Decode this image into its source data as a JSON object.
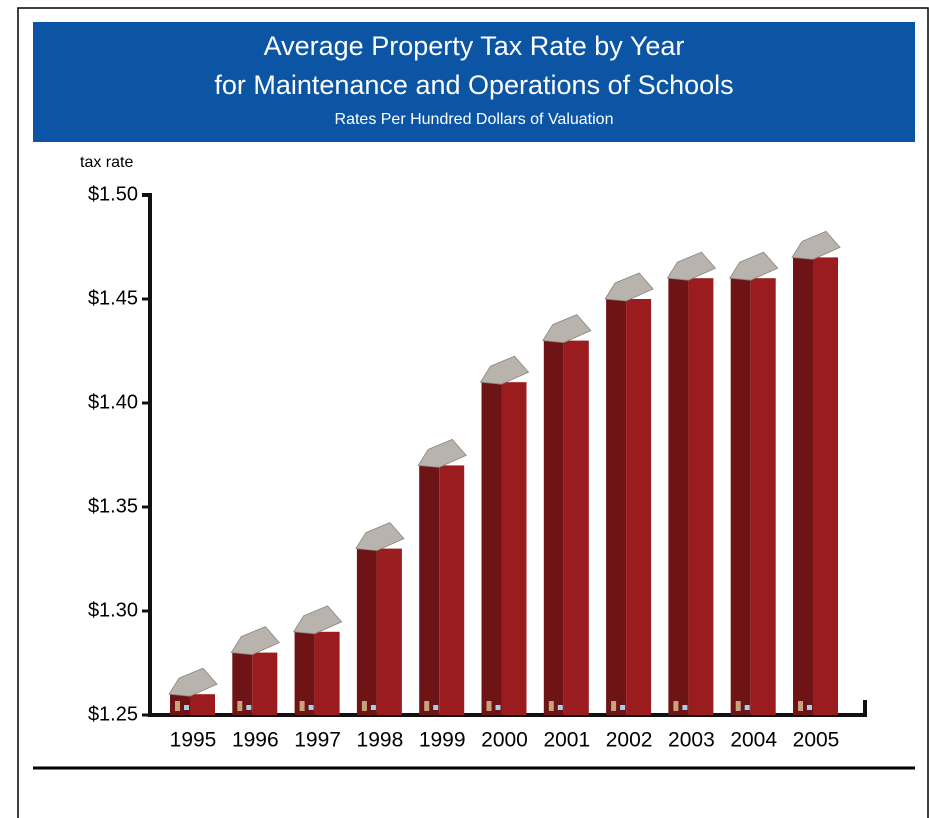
{
  "chart_data": {
    "type": "bar",
    "title": "Average Property Tax Rate by Year",
    "subtitle": "for Maintenance and Operations of Schools",
    "note": "Rates Per Hundred Dollars of Valuation",
    "y_label": "tax rate",
    "categories": [
      "1995",
      "1996",
      "1997",
      "1998",
      "1999",
      "2000",
      "2001",
      "2002",
      "2003",
      "2004",
      "2005"
    ],
    "values": [
      1.26,
      1.28,
      1.29,
      1.33,
      1.37,
      1.41,
      1.43,
      1.45,
      1.46,
      1.46,
      1.47
    ],
    "color": "#9a1c1f",
    "ylim": [
      1.25,
      1.5
    ],
    "yticks": [
      {
        "value": 1.25,
        "label": "$1.25"
      },
      {
        "value": 1.3,
        "label": "$1.30"
      },
      {
        "value": 1.35,
        "label": "$1.35"
      },
      {
        "value": 1.4,
        "label": "$1.40"
      },
      {
        "value": 1.45,
        "label": "$1.45"
      },
      {
        "value": 1.5,
        "label": "$1.50"
      }
    ]
  }
}
